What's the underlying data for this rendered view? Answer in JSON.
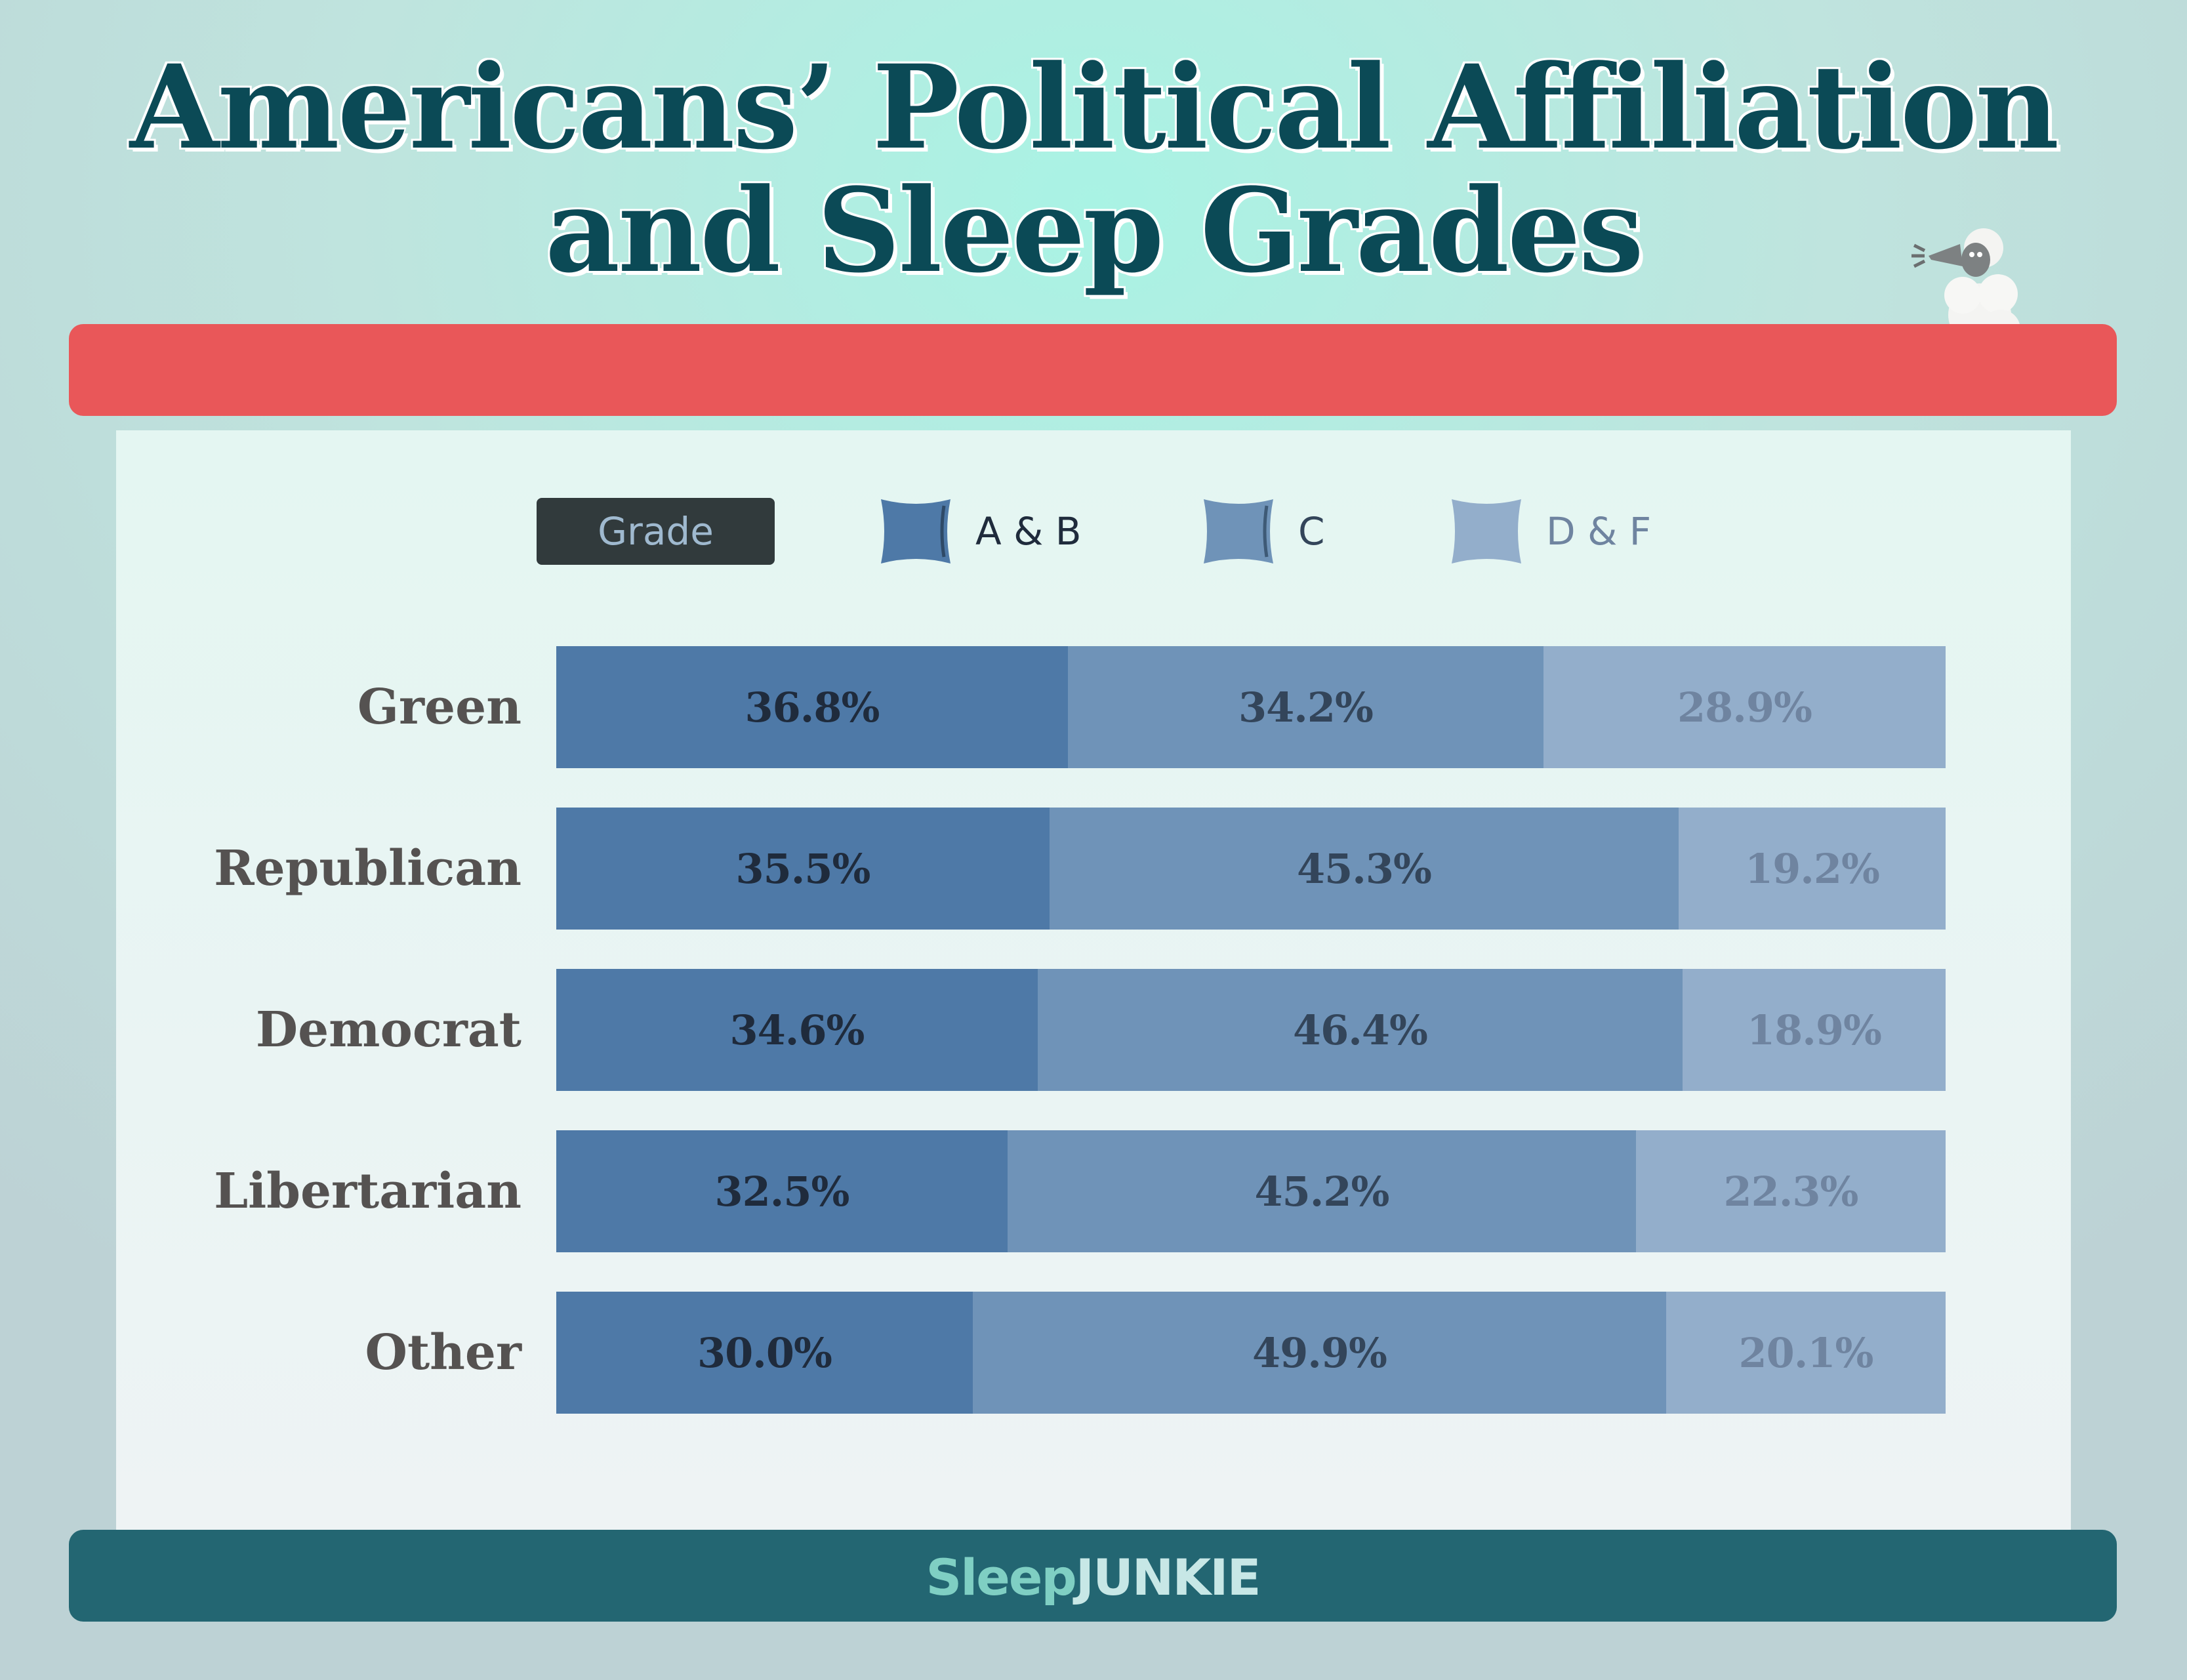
{
  "title_lines": [
    "Americans’ Political Affiliation",
    "and Sleep Grades"
  ],
  "legend": {
    "title": "Grade",
    "items": [
      {
        "label": "A & B",
        "color": "#4e79a7",
        "text_color": "#1f2b3c"
      },
      {
        "label": "C",
        "color": "#6f93b8",
        "text_color": "#33455a"
      },
      {
        "label": "D & F",
        "color": "#93aecb",
        "text_color": "#6f84a0"
      }
    ]
  },
  "brand": {
    "part1": "Sleep",
    "part2": "JUNKIE"
  },
  "colors": {
    "red_bar": "#e95759",
    "footer": "#236672",
    "title": "#0b4a56"
  },
  "chart_data": {
    "type": "bar",
    "orientation": "horizontal",
    "stacked": true,
    "categories": [
      "Green",
      "Republican",
      "Democrat",
      "Libertarian",
      "Other"
    ],
    "series": [
      {
        "name": "A & B",
        "values": [
          36.8,
          35.5,
          34.6,
          32.5,
          30.0
        ],
        "labels": [
          "36.8%",
          "35.5%",
          "34.6%",
          "32.5%",
          "30.0%"
        ]
      },
      {
        "name": "C",
        "values": [
          34.2,
          45.3,
          46.4,
          45.2,
          49.9
        ],
        "labels": [
          "34.2%",
          "45.3%",
          "46.4%",
          "45.2%",
          "49.9%"
        ]
      },
      {
        "name": "D & F",
        "values": [
          28.9,
          19.2,
          18.9,
          22.3,
          20.1
        ],
        "labels": [
          "28.9%",
          "19.2%",
          "18.9%",
          "22.3%",
          "20.1%"
        ]
      }
    ],
    "title": "Americans’ Political Affiliation and Sleep Grades",
    "legend_position": "top",
    "unit": "%"
  }
}
